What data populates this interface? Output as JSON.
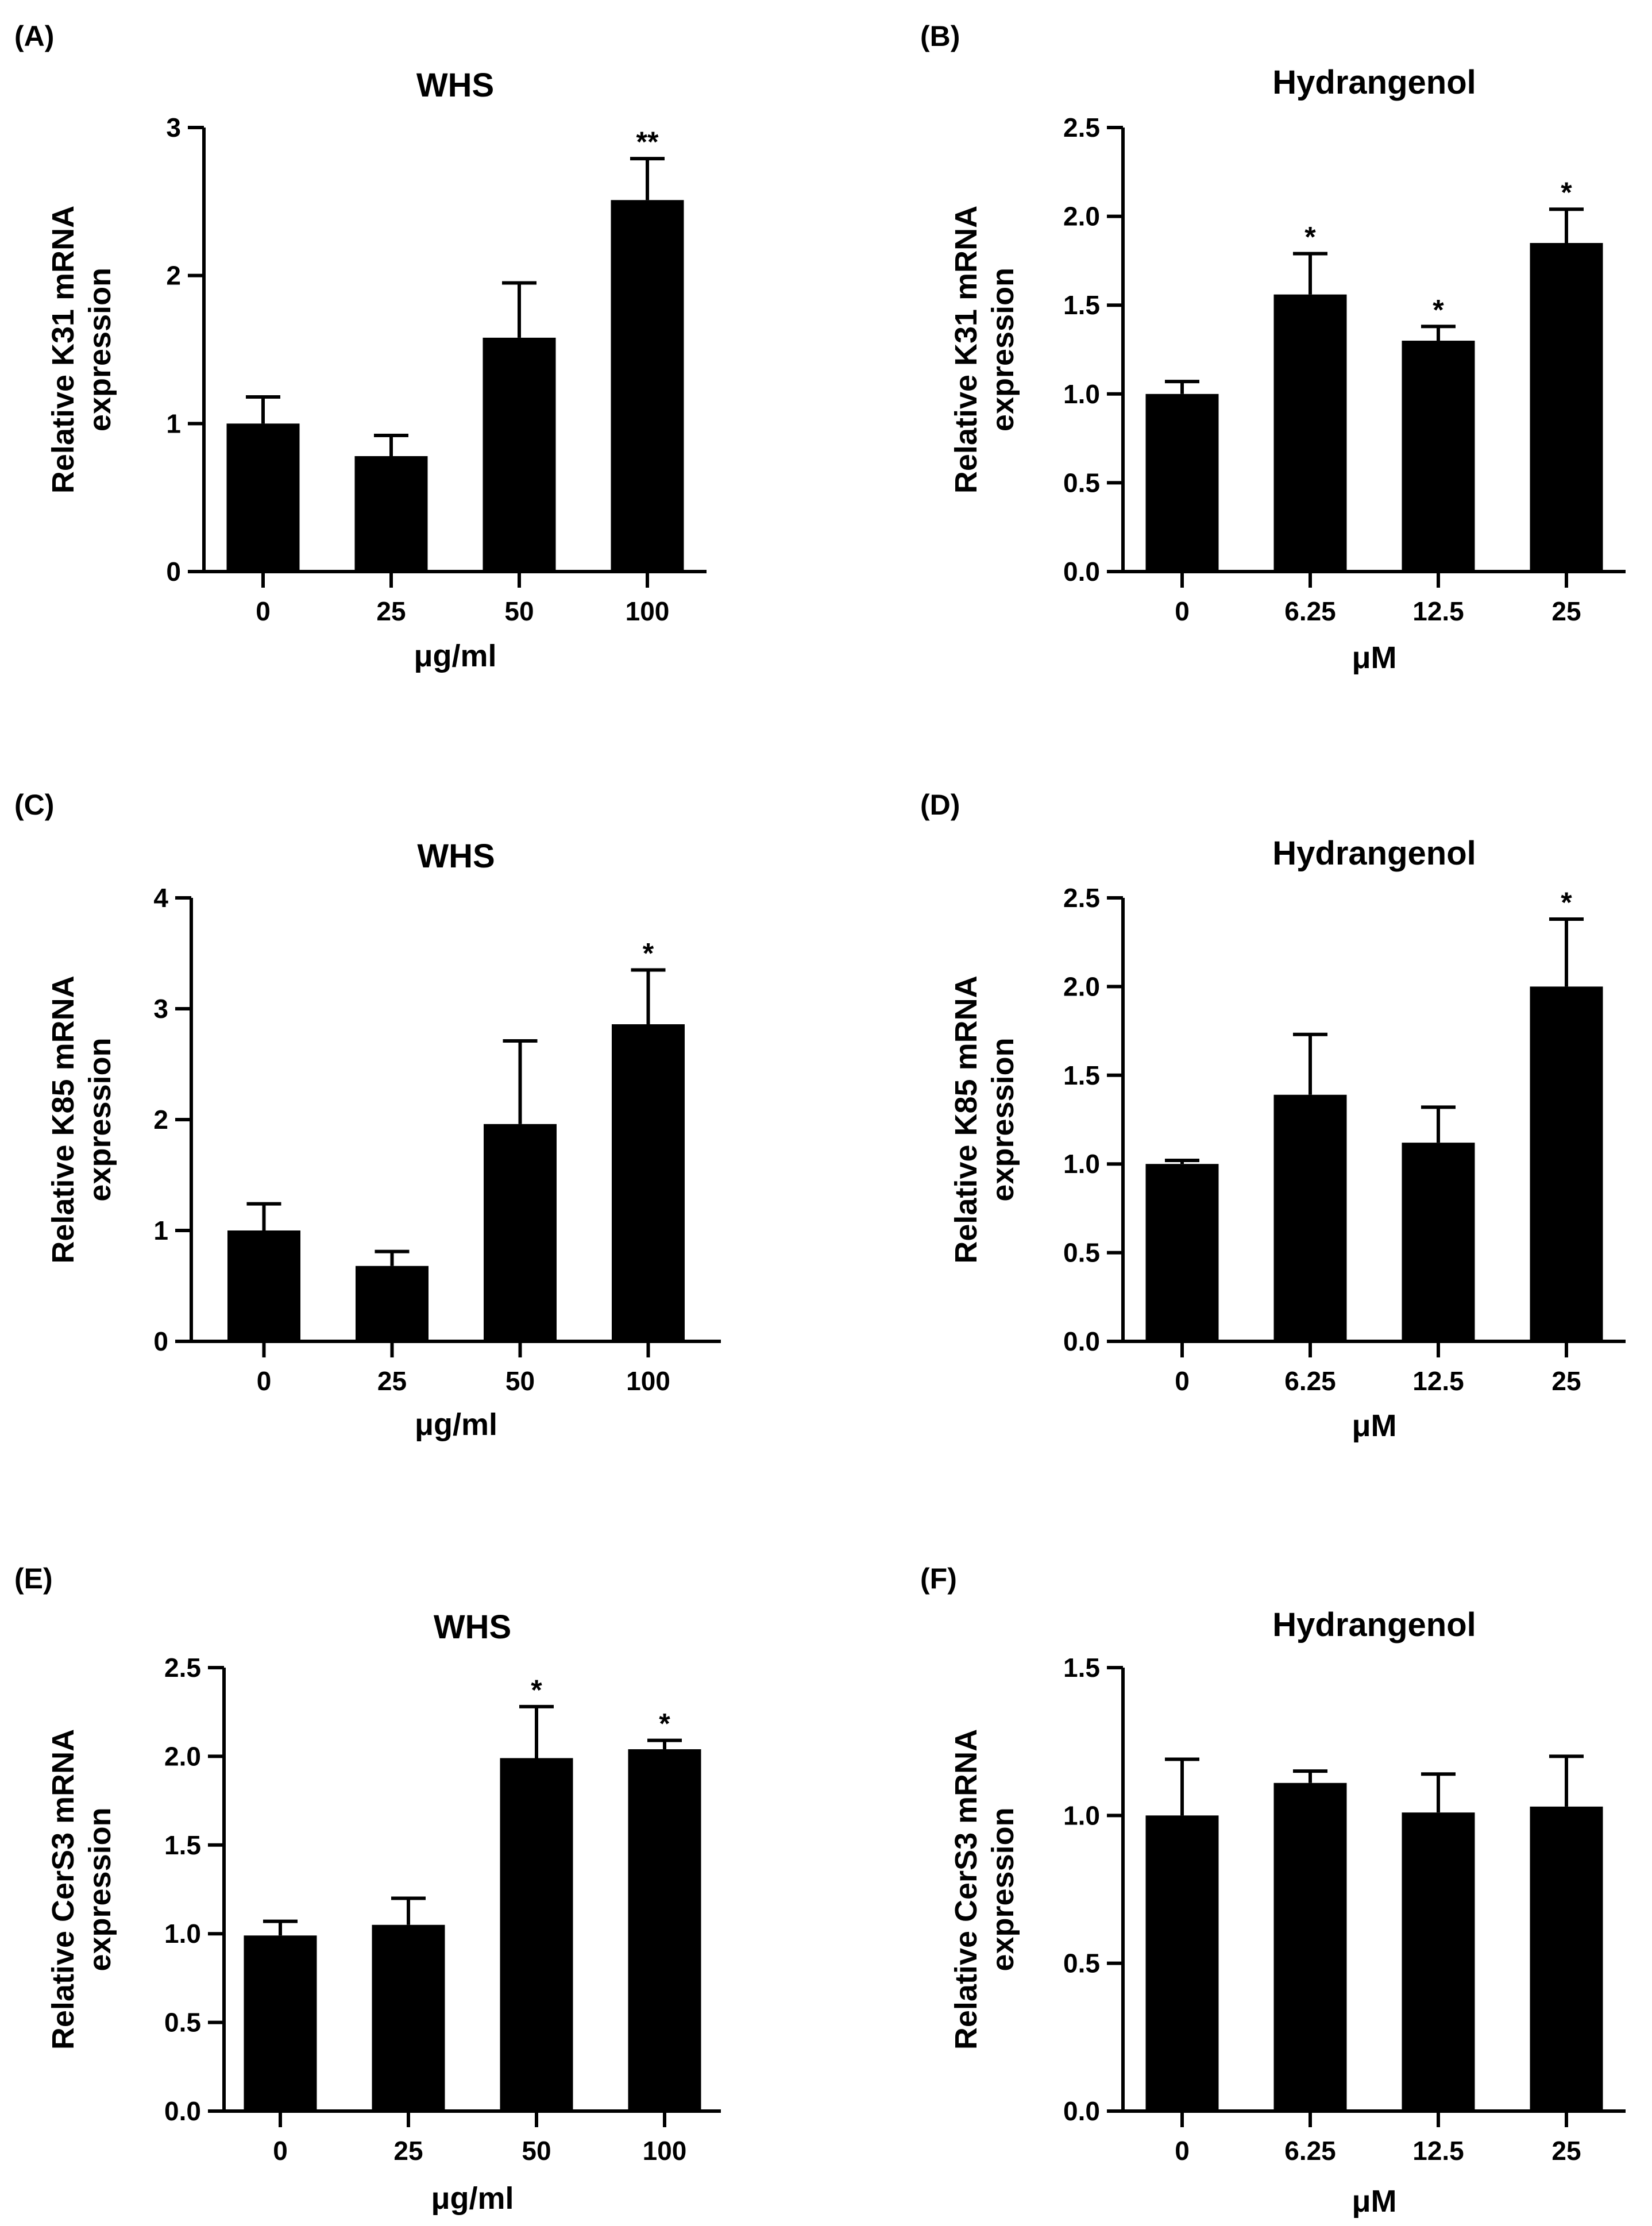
{
  "chart_data": [
    {
      "panel": "(A)",
      "type": "bar",
      "title": "WHS",
      "categories": [
        "0",
        "25",
        "50",
        "100"
      ],
      "values": [
        1.0,
        0.78,
        1.58,
        2.51
      ],
      "errors": [
        0.18,
        0.14,
        0.37,
        0.28
      ],
      "significance": [
        "",
        "",
        "",
        "**"
      ],
      "xlabel": "μg/ml",
      "ylabel": [
        "Relative K31 mRNA",
        "expression"
      ],
      "ylim": [
        0,
        3
      ],
      "yticks": [
        "0",
        "1",
        "2",
        "3"
      ],
      "bar_color": "#000000"
    },
    {
      "panel": "(B)",
      "type": "bar",
      "title": "Hydrangenol",
      "categories": [
        "0",
        "6.25",
        "12.5",
        "25"
      ],
      "values": [
        1.0,
        1.56,
        1.3,
        1.85
      ],
      "errors": [
        0.07,
        0.23,
        0.08,
        0.19
      ],
      "significance": [
        "",
        "*",
        "*",
        "*"
      ],
      "xlabel": "μM",
      "ylabel": [
        "Relative K31 mRNA",
        "expression"
      ],
      "ylim": [
        0,
        2.5
      ],
      "yticks": [
        "0.0",
        "0.5",
        "1.0",
        "1.5",
        "2.0",
        "2.5"
      ],
      "bar_color": "#000000"
    },
    {
      "panel": "(C)",
      "type": "bar",
      "title": "WHS",
      "categories": [
        "0",
        "25",
        "50",
        "100"
      ],
      "values": [
        1.0,
        0.68,
        1.96,
        2.86
      ],
      "errors": [
        0.24,
        0.13,
        0.75,
        0.49
      ],
      "significance": [
        "",
        "",
        "",
        "*"
      ],
      "xlabel": "μg/ml",
      "ylabel": [
        "Relative K85 mRNA",
        "expression"
      ],
      "ylim": [
        0,
        4
      ],
      "yticks": [
        "0",
        "1",
        "2",
        "3",
        "4"
      ],
      "bar_color": "#000000"
    },
    {
      "panel": "(D)",
      "type": "bar",
      "title": "Hydrangenol",
      "categories": [
        "0",
        "6.25",
        "12.5",
        "25"
      ],
      "values": [
        1.0,
        1.39,
        1.12,
        2.0
      ],
      "errors": [
        0.02,
        0.34,
        0.2,
        0.38
      ],
      "significance": [
        "",
        "",
        "",
        "*"
      ],
      "xlabel": "μM",
      "ylabel": [
        "Relative K85 mRNA",
        "expression"
      ],
      "ylim": [
        0,
        2.5
      ],
      "yticks": [
        "0.0",
        "0.5",
        "1.0",
        "1.5",
        "2.0",
        "2.5"
      ],
      "bar_color": "#000000"
    },
    {
      "panel": "(E)",
      "type": "bar",
      "title": "WHS",
      "categories": [
        "0",
        "25",
        "50",
        "100"
      ],
      "values": [
        0.99,
        1.05,
        1.99,
        2.04
      ],
      "errors": [
        0.08,
        0.15,
        0.29,
        0.05
      ],
      "significance": [
        "",
        "",
        "*",
        "*"
      ],
      "xlabel": "μg/ml",
      "ylabel": [
        "Relative CerS3 mRNA",
        "expression"
      ],
      "ylim": [
        0,
        2.5
      ],
      "yticks": [
        "0.0",
        "0.5",
        "1.0",
        "1.5",
        "2.0",
        "2.5"
      ],
      "bar_color": "#000000"
    },
    {
      "panel": "(F)",
      "type": "bar",
      "title": "Hydrangenol",
      "categories": [
        "0",
        "6.25",
        "12.5",
        "25"
      ],
      "values": [
        1.0,
        1.11,
        1.01,
        1.03
      ],
      "errors": [
        0.19,
        0.04,
        0.13,
        0.17
      ],
      "significance": [
        "",
        "",
        "",
        ""
      ],
      "xlabel": "μM",
      "ylabel": [
        "Relative CerS3 mRNA",
        "expression"
      ],
      "ylim": [
        0,
        1.5
      ],
      "yticks": [
        "0.0",
        "0.5",
        "1.0",
        "1.5"
      ],
      "bar_color": "#000000"
    }
  ]
}
